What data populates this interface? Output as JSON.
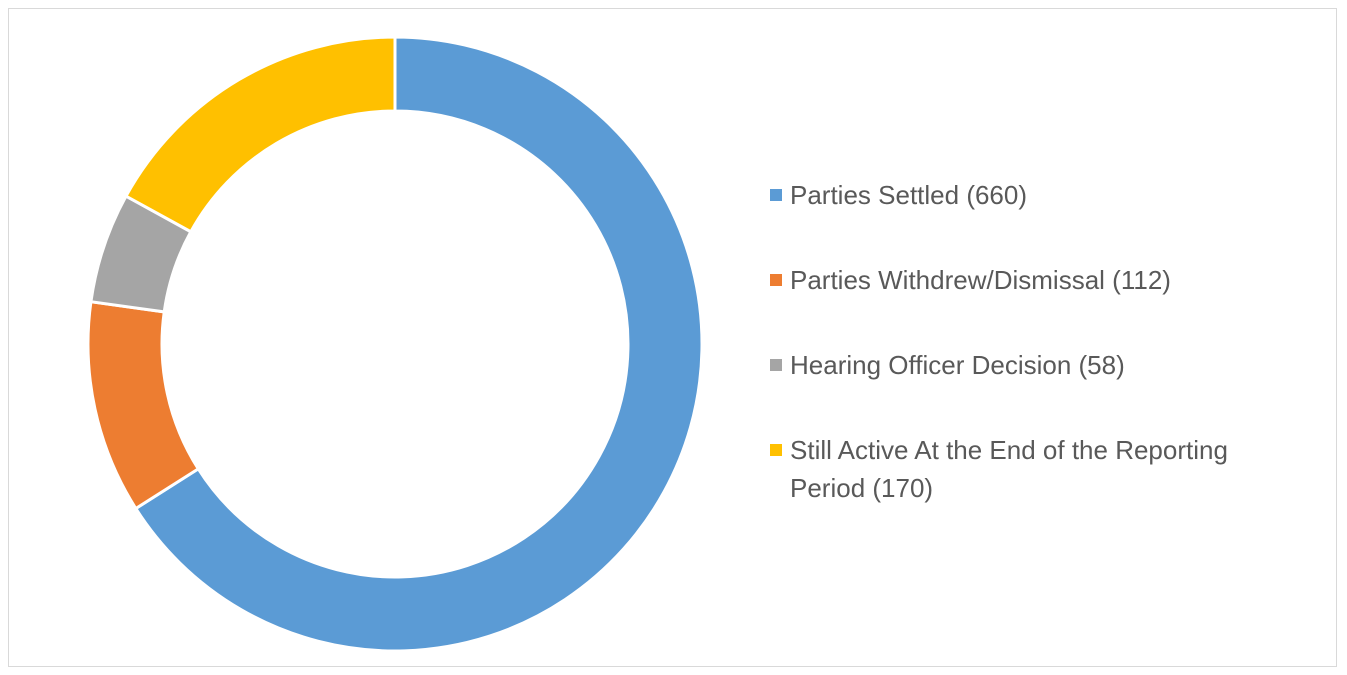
{
  "chart_data": {
    "type": "donut",
    "categories": [
      "Parties Settled (660)",
      "Parties Withdrew/Dismissal (112)",
      "Hearing Officer Decision (58)",
      "Still Active At the End of the Reporting Period (170)"
    ],
    "values": [
      660,
      112,
      58,
      170
    ],
    "colors": [
      "#5b9bd5",
      "#ed7d31",
      "#a5a5a5",
      "#ffc000"
    ],
    "legend": "right"
  }
}
